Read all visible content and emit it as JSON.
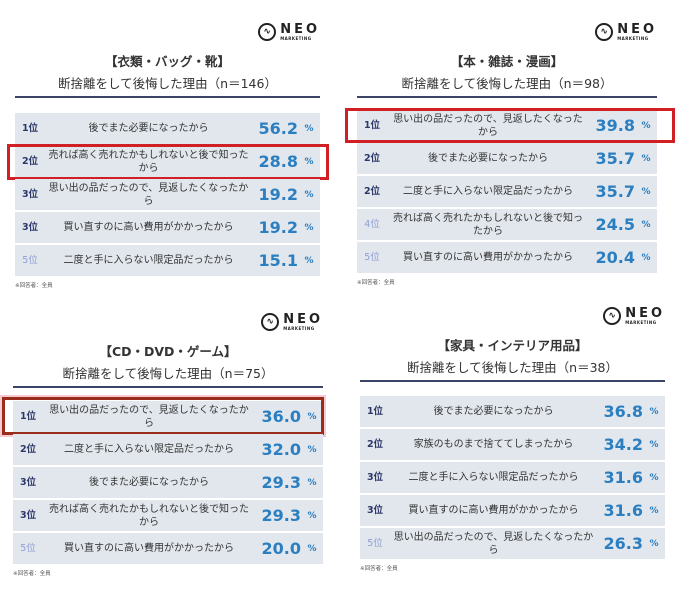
{
  "brand": {
    "name": "NEO",
    "sub": "MARKETING",
    "icon": "wave-circle-icon"
  },
  "colors": {
    "row_bg": "#e2e7ed",
    "value": "#2b7fc0",
    "rank": "#2d3869",
    "highlight": "#d01f25"
  },
  "percent_unit": "%",
  "panels": [
    {
      "title": "【衣類・バッグ・靴】",
      "subtitle": "断捨離をして後悔した理由（n＝146）",
      "note": "※回答者：全員",
      "highlighted_rank_index": 1,
      "rows": [
        {
          "rank": "1位",
          "reason": "後でまた必要になったから",
          "value": "56.2"
        },
        {
          "rank": "2位",
          "reason": "売れば高く売れたかもしれないと後で知ったから",
          "value": "28.8"
        },
        {
          "rank": "3位",
          "reason": "思い出の品だったので、見返したくなったから",
          "value": "19.2"
        },
        {
          "rank": "3位",
          "reason": "買い直すのに高い費用がかかったから",
          "value": "19.2"
        },
        {
          "rank": "5位",
          "reason": "二度と手に入らない限定品だったから",
          "value": "15.1"
        }
      ]
    },
    {
      "title": "【本・雑誌・漫画】",
      "subtitle": "断捨離をして後悔した理由（n＝98）",
      "note": "※回答者：全員",
      "highlighted_rank_index": 0,
      "rows": [
        {
          "rank": "1位",
          "reason": "思い出の品だったので、見返したくなったから",
          "value": "39.8"
        },
        {
          "rank": "2位",
          "reason": "後でまた必要になったから",
          "value": "35.7"
        },
        {
          "rank": "2位",
          "reason": "二度と手に入らない限定品だったから",
          "value": "35.7"
        },
        {
          "rank": "4位",
          "reason": "売れば高く売れたかもしれないと後で知ったから",
          "value": "24.5"
        },
        {
          "rank": "5位",
          "reason": "買い直すのに高い費用がかかったから",
          "value": "20.4"
        }
      ]
    },
    {
      "title": "【CD・DVD・ゲーム】",
      "subtitle": "断捨離をして後悔した理由（n＝75）",
      "note": "※回答者：全員",
      "highlighted_rank_index": 0,
      "rows": [
        {
          "rank": "1位",
          "reason": "思い出の品だったので、見返したくなったから",
          "value": "36.0"
        },
        {
          "rank": "2位",
          "reason": "二度と手に入らない限定品だったから",
          "value": "32.0"
        },
        {
          "rank": "3位",
          "reason": "後でまた必要になったから",
          "value": "29.3"
        },
        {
          "rank": "3位",
          "reason": "売れば高く売れたかもしれないと後で知ったから",
          "value": "29.3"
        },
        {
          "rank": "5位",
          "reason": "買い直すのに高い費用がかかったから",
          "value": "20.0"
        }
      ]
    },
    {
      "title": "【家具・インテリア用品】",
      "subtitle": "断捨離をして後悔した理由（n＝38）",
      "note": "※回答者：全員",
      "rows": [
        {
          "rank": "1位",
          "reason": "後でまた必要になったから",
          "value": "36.8"
        },
        {
          "rank": "2位",
          "reason": "家族のものまで捨ててしまったから",
          "value": "34.2"
        },
        {
          "rank": "3位",
          "reason": "二度と手に入らない限定品だったから",
          "value": "31.6"
        },
        {
          "rank": "3位",
          "reason": "買い直すのに高い費用がかかったから",
          "value": "31.6"
        },
        {
          "rank": "5位",
          "reason": "思い出の品だったので、見返したくなったから",
          "value": "26.3"
        }
      ]
    }
  ]
}
